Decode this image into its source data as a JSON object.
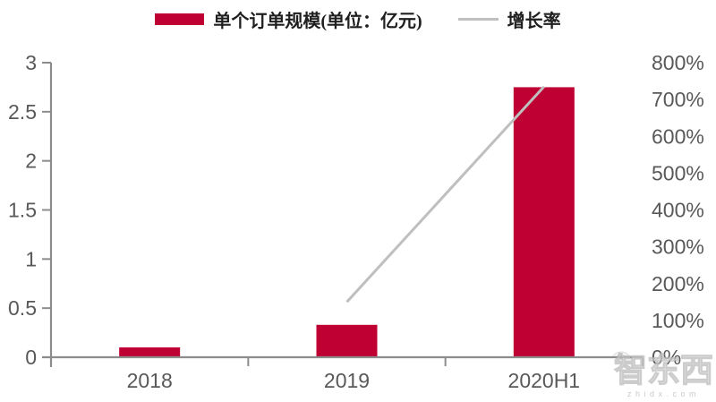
{
  "legend": {
    "bar_label": "单个订单规模(单位：亿元)",
    "line_label": "增长率"
  },
  "colors": {
    "bar_series": "#BF0032",
    "line_series": "#BFBFBF",
    "axis": "#8C8C8C",
    "tick_text": "#595959"
  },
  "watermark": {
    "brand": "智东西",
    "domain": "zhidx.com"
  },
  "chart_data": {
    "type": "bar",
    "subtype": "bar+line combo, dual axis",
    "title": "",
    "categories": [
      "2018",
      "2019",
      "2020H1"
    ],
    "series": [
      {
        "name": "单个订单规模(单位：亿元)",
        "type": "bar",
        "axis": "left",
        "color": "#BF0032",
        "values": [
          0.1,
          0.33,
          2.75
        ]
      },
      {
        "name": "增长率",
        "type": "line",
        "axis": "right",
        "color": "#BFBFBF",
        "unit": "%",
        "values": [
          null,
          150,
          735
        ]
      }
    ],
    "left_axis": {
      "min": 0,
      "max": 3,
      "step": 0.5,
      "ticks": [
        "0",
        "0.5",
        "1",
        "1.5",
        "2",
        "2.5",
        "3"
      ]
    },
    "right_axis": {
      "min": 0,
      "max": 800,
      "step": 100,
      "ticks": [
        "0%",
        "100%",
        "200%",
        "300%",
        "400%",
        "500%",
        "600%",
        "700%",
        "800%"
      ]
    },
    "grid": false,
    "legend_position": "top"
  }
}
